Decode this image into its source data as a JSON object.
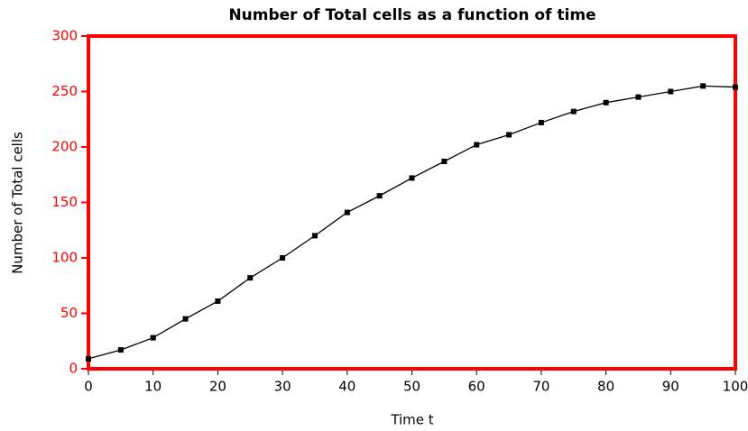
{
  "chart_data": {
    "type": "line",
    "title": "Number of Total cells as a function of time",
    "x_label": "Time t",
    "y_label": "Number of Total cells",
    "x": [
      0,
      5,
      10,
      15,
      20,
      25,
      30,
      35,
      40,
      45,
      50,
      55,
      60,
      65,
      70,
      75,
      80,
      85,
      90,
      95,
      100
    ],
    "series": [
      {
        "color": "#000000",
        "values": [
          9,
          17,
          28,
          45,
          61,
          82,
          100,
          120,
          141,
          156,
          172,
          187,
          202,
          211,
          222,
          232,
          240,
          245,
          250,
          255,
          254
        ]
      }
    ],
    "xlim": [
      0,
      100
    ],
    "xticks": [
      0,
      10,
      20,
      30,
      40,
      50,
      60,
      70,
      80,
      90,
      100
    ],
    "ylim": [
      0,
      300
    ],
    "yticks": [
      0,
      50,
      100,
      150,
      200,
      250,
      300
    ],
    "frame_color": "#ff0000",
    "ytick_color": "#ff0000",
    "grid": false
  }
}
